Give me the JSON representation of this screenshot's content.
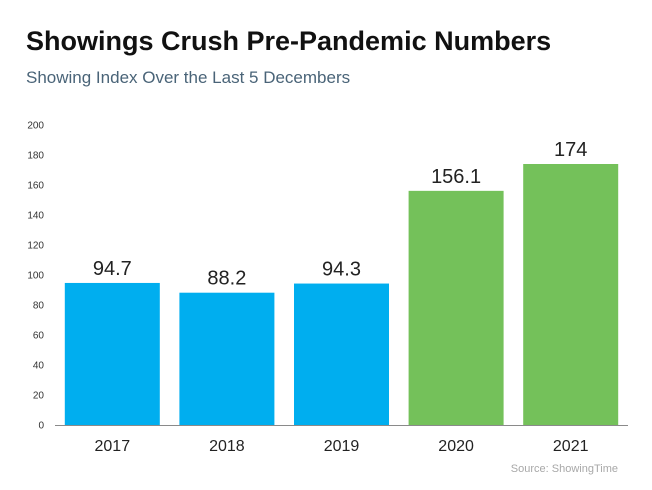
{
  "title": "Showings Crush Pre-Pandemic Numbers",
  "subtitle": "Showing Index Over the Last 5 Decembers",
  "source": "Source: ShowingTime",
  "colors": {
    "blue": "#00aeef",
    "green": "#74c15a",
    "axis": "#8a8a8a",
    "tick_text": "#333333",
    "label_text": "#222222"
  },
  "chart_data": {
    "type": "bar",
    "title": "Showings Crush Pre-Pandemic Numbers",
    "subtitle": "Showing Index Over the Last 5 Decembers",
    "xlabel": "",
    "ylabel": "",
    "ylim": [
      0,
      200
    ],
    "yticks": [
      "0",
      "20",
      "40",
      "60",
      "80",
      "100",
      "120",
      "140",
      "160",
      "180",
      "200"
    ],
    "categories": [
      "2017",
      "2018",
      "2019",
      "2020",
      "2021"
    ],
    "values": [
      94.7,
      88.2,
      94.3,
      156.1,
      174
    ],
    "value_labels": [
      "94.7",
      "88.2",
      "94.3",
      "156.1",
      "174"
    ],
    "bar_colors": [
      "#00aeef",
      "#00aeef",
      "#00aeef",
      "#74c15a",
      "#74c15a"
    ],
    "grid": false,
    "legend": "none"
  }
}
